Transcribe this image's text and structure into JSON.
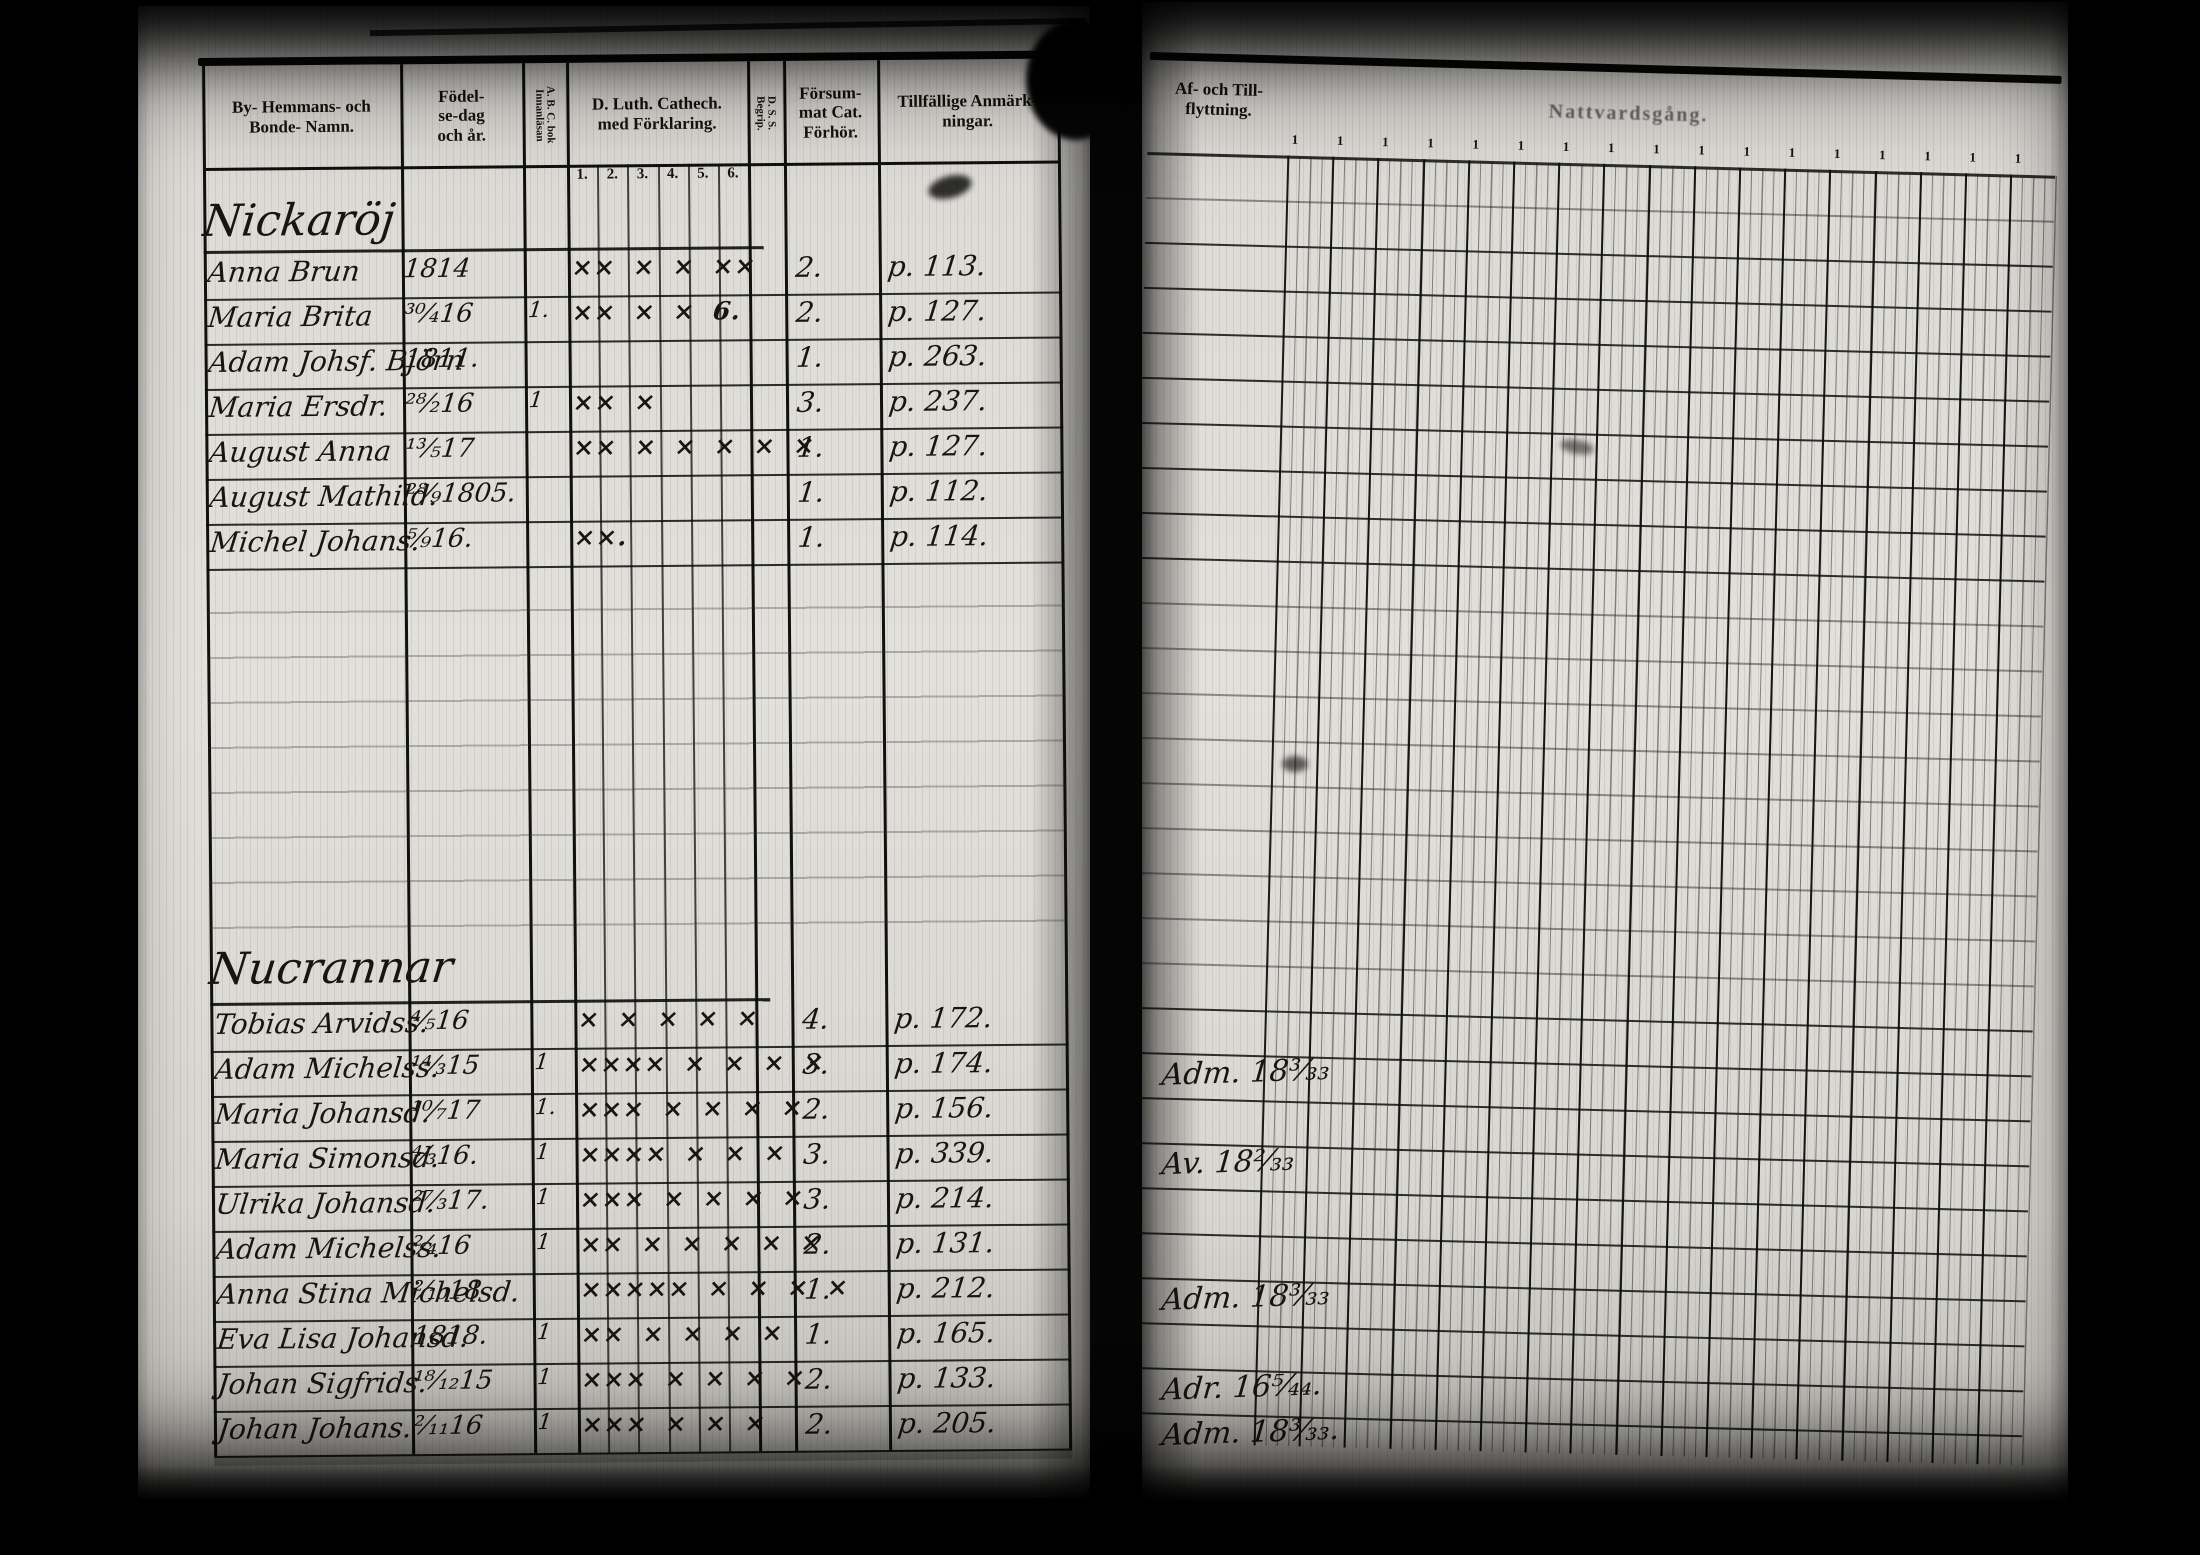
{
  "document": {
    "type_note": "scanned parish examination register spread (two pages)"
  },
  "left_page": {
    "header": {
      "name_line1": "By- Hemmans- och",
      "name_line2": "Bonde- Namn.",
      "birth_line1": "Födel-",
      "birth_line2": "se-dag",
      "birth_line3": "och år.",
      "abc_line1": "A. B. C. bok",
      "abc_line2": "Innanläsan",
      "cat_line1": "D. Luth. Cathech.",
      "cat_line2": "med Förklaring.",
      "dss_line1": "D. S. S.",
      "dss_line2": "Begrip.",
      "fors_line1": "Försum-",
      "fors_line2": "mat Cat.",
      "fors_line3": "Förhör.",
      "anm_line1": "Tillfällige Anmärk-",
      "anm_line2": "ningar.",
      "cathech_subcols": [
        "1.",
        "2.",
        "3.",
        "4.",
        "5.",
        "6."
      ]
    },
    "sections": [
      {
        "village": "Nickaröj",
        "rows": [
          {
            "name": "Anna Brun",
            "birth": "1814",
            "abc": "",
            "cat": "×× × × ××",
            "fors": "2.",
            "anm": "p. 113.",
            "flytt": ""
          },
          {
            "name": "Maria Brita",
            "birth": "³⁰⁄₄16",
            "abc": "1.",
            "cat": "×× × × 6.",
            "fors": "2.",
            "anm": "p. 127.",
            "flytt": ""
          },
          {
            "name": "Adam Johsf. Björn",
            "birth": "1811.",
            "abc": "",
            "cat": "",
            "fors": "1.",
            "anm": "p. 263.",
            "flytt": ""
          },
          {
            "name": "Maria Ersdr.",
            "birth": "²⁸⁄₂16",
            "abc": "1",
            "cat": "×× ×",
            "fors": "3.",
            "anm": "p. 237.",
            "flytt": ""
          },
          {
            "name": "August Anna",
            "birth": "¹³⁄₅17",
            "abc": "",
            "cat": "×× × × × × ×",
            "fors": "1.",
            "anm": "p. 127.",
            "flytt": ""
          },
          {
            "name": "August Mathild.",
            "birth": "²⁸⁄₉1805.",
            "abc": "",
            "cat": "",
            "fors": "1.",
            "anm": "p. 112.",
            "flytt": ""
          },
          {
            "name": "Michel Johans.",
            "birth": "⁵⁄₉16.",
            "abc": "",
            "cat": "××.",
            "fors": "1.",
            "anm": "p. 114.",
            "flytt": ""
          }
        ]
      },
      {
        "village": "Nucrannar",
        "rows": [
          {
            "name": "Tobias Arvidss.",
            "birth": "⁴⁄₅16",
            "abc": "",
            "cat": "× × × × ×",
            "fors": "4.",
            "anm": "p. 172.",
            "flytt": ""
          },
          {
            "name": "Adam Michelss.",
            "birth": "¹⁴⁄₃15",
            "abc": "1",
            "cat": "×××× × × × ×",
            "fors": "3.",
            "anm": "p. 174.",
            "flytt": "Adm. 18³⁄₃₃"
          },
          {
            "name": "Maria Johansd.",
            "birth": "¹⁰⁄₇17",
            "abc": "1.",
            "cat": "××× × × × ×",
            "fors": "2.",
            "anm": "p. 156.",
            "flytt": ""
          },
          {
            "name": "Maria Simonsd.",
            "birth": "⁴⁄₃16.",
            "abc": "1",
            "cat": "×××× × × ×",
            "fors": "3.",
            "anm": "p. 339.",
            "flytt": "Av. 18²⁄₃₃"
          },
          {
            "name": "Ulrika Johansd.",
            "birth": "²⁷⁄₃17.",
            "abc": "1",
            "cat": "××× × × × ×",
            "fors": "3.",
            "anm": "p. 214.",
            "flytt": ""
          },
          {
            "name": "Adam Michelss.",
            "birth": "²⁄₄16",
            "abc": "1",
            "cat": "×× × × × × ×",
            "fors": "2.",
            "anm": "p. 131.",
            "flytt": ""
          },
          {
            "name": "Anna Stina Michelsd.",
            "birth": "²⁄₁₀18",
            "abc": "",
            "cat": "××××× × × × ×",
            "fors": "1.",
            "anm": "p. 212.",
            "flytt": "Adm. 18³⁄₃₃"
          },
          {
            "name": "Eva Lisa Johansd.",
            "birth": "1818.",
            "abc": "1",
            "cat": "×× × × × ×",
            "fors": "1.",
            "anm": "p. 165.",
            "flytt": ""
          },
          {
            "name": "Johan Sigfrids.",
            "birth": "¹⁸⁄₁₂15",
            "abc": "1",
            "cat": "××× × × × ×",
            "fors": "2.",
            "anm": "p. 133.",
            "flytt": "Adr. 16⁵⁄₄₄."
          },
          {
            "name": "Johan Johans.",
            "birth": "²⁄₁₁16",
            "abc": "1",
            "cat": "××× × × ×",
            "fors": "2.",
            "anm": "p. 205.",
            "flytt": "Adm. 18³⁄₃₃."
          }
        ]
      }
    ]
  },
  "right_page": {
    "header": {
      "flytt_line1": "Af- och Till-",
      "flytt_line2": "flyttning.",
      "title": "Nattvardsgång."
    },
    "group_labels": [
      "1",
      "1",
      "1",
      "1",
      "1",
      "1",
      "1",
      "1",
      "1",
      "1",
      "1",
      "1",
      "1",
      "1",
      "1",
      "1",
      "1"
    ]
  },
  "colors": {
    "film_black": "#030303",
    "paper": "#dcdad5",
    "ink": "#191410",
    "rule": "#101010"
  }
}
